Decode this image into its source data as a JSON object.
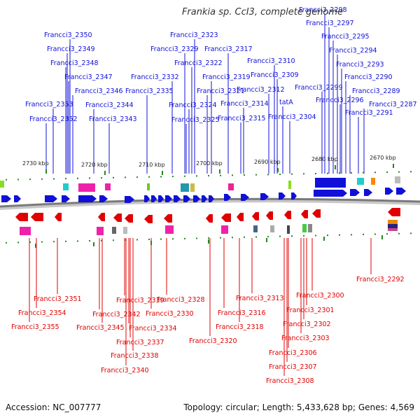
{
  "title": "Frankia sp. CcI3, complete genome",
  "footer": {
    "accession": "Accession: NC_007777",
    "summary": "Topology: circular; Length: 5,433,628 bp; Genes: 4,569"
  },
  "colors": {
    "forward": "#1010d8",
    "reverse": "#e00000",
    "backbone": "#888888",
    "tick": "#228822"
  },
  "ruler": [
    "2730 kbp",
    "2720 kbp",
    "2710 kbp",
    "2700 kbp",
    "2690 kbp",
    "2680 kbp",
    "2670 kbp"
  ],
  "forward_labels": [
    "Francci3_2298",
    "Francci3_2297",
    "Francci3_2295",
    "Francci3_2294",
    "Francci3_2293",
    "Francci3_2290",
    "Francci3_2289",
    "Francci3_2287",
    "Francci3_2291",
    "Francci3_2296",
    "Francci3_2299",
    "Francci3_2310",
    "Francci3_2309",
    "Francci3_2312",
    "tatA",
    "Francci3_2304",
    "Francci3_2314",
    "Francci3_2315",
    "Francci3_2317",
    "Francci3_2319",
    "Francci3_2321",
    "Francci3_2323",
    "Francci3_2329",
    "Francci3_2322",
    "Francci3_2324",
    "Francci3_2325",
    "Francci3_2332",
    "Francci3_2335",
    "Francci3_2350",
    "Francci3_2349",
    "Francci3_2348",
    "Francci3_2347",
    "Francci3_2346",
    "Francci3_2344",
    "Francci3_2343",
    "Francci3_2353",
    "Francci3_2352"
  ],
  "reverse_labels": [
    "Francci3_2351",
    "Francci3_2354",
    "Francci3_2355",
    "Francci3_2339",
    "Francci3_2342",
    "Francci3_2345",
    "Francci3_2334",
    "Francci3_2337",
    "Francci3_2338",
    "Francci3_2340",
    "Francci3_2328",
    "Francci3_2330",
    "Francci3_2316",
    "Francci3_2318",
    "Francci3_2320",
    "Francci3_2313",
    "Francci3_2300",
    "Francci3_2301",
    "Francci3_2302",
    "Francci3_2303",
    "Francci3_2306",
    "Francci3_2307",
    "Francci3_2308",
    "Francci3_2292"
  ]
}
